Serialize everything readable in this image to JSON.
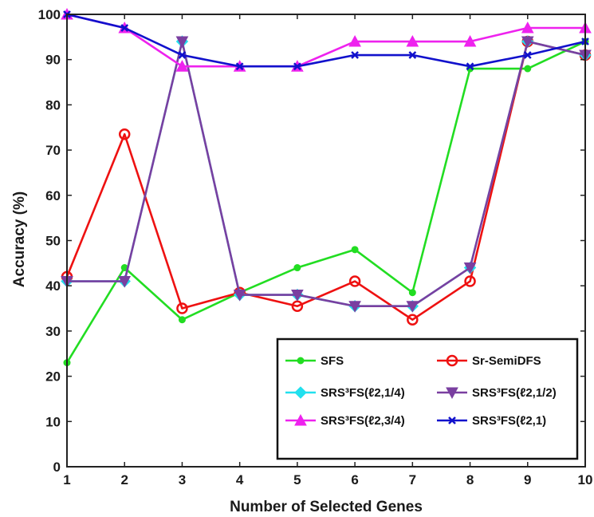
{
  "chart_data": {
    "type": "line",
    "x": [
      1,
      2,
      3,
      4,
      5,
      6,
      7,
      8,
      9,
      10
    ],
    "xlabel": "Number of Selected Genes",
    "ylabel": "Accuracy (%)",
    "xlim": [
      1,
      10
    ],
    "ylim": [
      0,
      100
    ],
    "xticks": [
      "1",
      "2",
      "3",
      "4",
      "5",
      "6",
      "7",
      "8",
      "9",
      "10"
    ],
    "yticks": [
      "0",
      "10",
      "20",
      "30",
      "40",
      "50",
      "60",
      "70",
      "80",
      "90",
      "100"
    ],
    "grid": false,
    "legend_position": "bottom-right",
    "series": [
      {
        "name": "SFS",
        "color": "#22dd22",
        "marker": "dot",
        "values": [
          23,
          44,
          32.5,
          38.5,
          44,
          48,
          38.5,
          88,
          88,
          94
        ]
      },
      {
        "name": "Sr-SemiDFS",
        "color": "#ee1111",
        "marker": "circle",
        "values": [
          42,
          73.5,
          35,
          38.5,
          35.5,
          41,
          32.5,
          41,
          94,
          91
        ]
      },
      {
        "name": "SRS³FS(ℓ2,1/4)",
        "color": "#22e0ee",
        "marker": "diamond",
        "values": [
          41,
          41,
          94,
          38,
          38,
          35.5,
          35.5,
          44,
          94,
          91
        ]
      },
      {
        "name": "SRS³FS(ℓ2,1/2)",
        "color": "#7a3fa0",
        "marker": "triangle-down",
        "values": [
          41,
          41,
          94,
          38,
          38,
          35.5,
          35.5,
          44,
          94,
          91
        ]
      },
      {
        "name": "SRS³FS(ℓ2,3/4)",
        "color": "#ee22ee",
        "marker": "triangle-up",
        "values": [
          100,
          97,
          88.5,
          88.5,
          88.5,
          94,
          94,
          94,
          97,
          97
        ]
      },
      {
        "name": "SRS³FS(ℓ2,1)",
        "color": "#1111cc",
        "marker": "x",
        "values": [
          100,
          97,
          91,
          88.5,
          88.5,
          91,
          91,
          88.5,
          91,
          94
        ]
      }
    ]
  }
}
